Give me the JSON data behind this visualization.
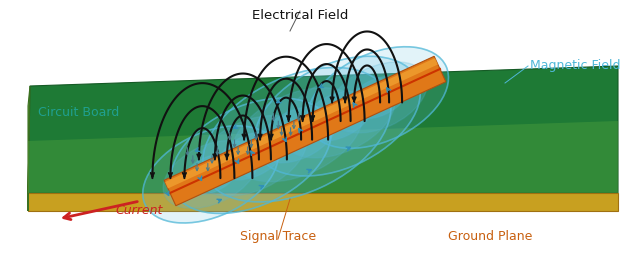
{
  "bg_color": "#ffffff",
  "board_top_color": "#1e7a35",
  "board_side_color": "#4a8a30",
  "board_bottom_color": "#c8a020",
  "ground_overlay_color": "#5aaa45",
  "signal_trace_main": "#e07818",
  "signal_trace_highlight": "#f0a040",
  "signal_trace_line": "#cc3300",
  "arc_color": "#111111",
  "mag_circle_color": "#50b8d8",
  "mag_arrow_color": "#3090b8",
  "elec_arrow_color": "#4a7a8a",
  "current_color": "#cc2222",
  "label_circuit_board": "Circuit Board",
  "label_circuit_board_color": "#20a090",
  "label_electrical_field": "Electrical Field",
  "label_electrical_field_color": "#111111",
  "label_magnetic_field": "Magnetic Field",
  "label_magnetic_field_color": "#50b8d8",
  "label_signal_trace": "Signal Trace",
  "label_signal_trace_color": "#c86010",
  "label_ground_plane": "Ground Plane",
  "label_ground_plane_color": "#c86010",
  "label_current": "Current",
  "label_current_color": "#cc2222",
  "figsize": [
    6.4,
    2.61
  ],
  "dpi": 100
}
